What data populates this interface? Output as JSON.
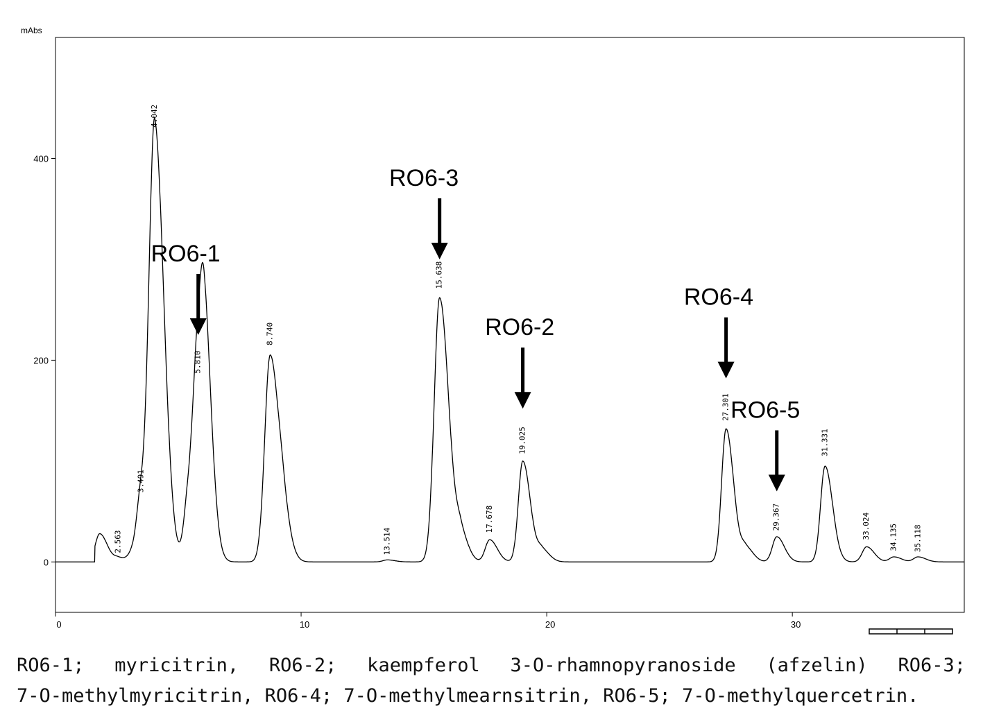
{
  "chart_data": {
    "type": "line",
    "ylabel": "mAbs",
    "xlim": [
      0,
      37
    ],
    "ylim": [
      -50,
      520
    ],
    "x_ticks": [
      0,
      10,
      20,
      30
    ],
    "y_ticks": [
      0,
      200,
      400
    ],
    "series": [
      {
        "peaks": [
          {
            "rt": 1.8,
            "height": 28
          },
          {
            "rt": 2.563,
            "height": 4
          },
          {
            "rt": 3.15,
            "height": 9
          },
          {
            "rt": 3.491,
            "height": 62
          },
          {
            "rt": 3.8,
            "height": 10
          },
          {
            "rt": 4.042,
            "height": 420
          },
          {
            "rt": 5.4,
            "height": 55
          },
          {
            "rt": 5.81,
            "height": 175
          },
          {
            "rt": 6.05,
            "height": 140
          },
          {
            "rt": 8.74,
            "height": 205
          },
          {
            "rt": 9.3,
            "height": 22
          },
          {
            "rt": 13.514,
            "height": 2
          },
          {
            "rt": 15.638,
            "height": 262
          },
          {
            "rt": 16.5,
            "height": 25
          },
          {
            "rt": 17.678,
            "height": 22
          },
          {
            "rt": 19.025,
            "height": 100
          },
          {
            "rt": 19.8,
            "height": 12
          },
          {
            "rt": 27.301,
            "height": 132
          },
          {
            "rt": 28.1,
            "height": 14
          },
          {
            "rt": 29.367,
            "height": 25
          },
          {
            "rt": 31.331,
            "height": 95
          },
          {
            "rt": 33.024,
            "height": 15
          },
          {
            "rt": 34.135,
            "height": 5
          },
          {
            "rt": 35.118,
            "height": 5
          }
        ]
      }
    ],
    "peak_labels": [
      {
        "x": 2.563,
        "y": 6,
        "text": "2.563"
      },
      {
        "x": 3.491,
        "y": 66,
        "text": "3.491"
      },
      {
        "x": 4.042,
        "y": 428,
        "text": "4.042"
      },
      {
        "x": 5.81,
        "y": 184,
        "text": "5.810"
      },
      {
        "x": 8.74,
        "y": 212,
        "text": "8.740"
      },
      {
        "x": 13.514,
        "y": 4,
        "text": "13.514"
      },
      {
        "x": 15.638,
        "y": 268,
        "text": "15.638"
      },
      {
        "x": 17.678,
        "y": 26,
        "text": "17.678"
      },
      {
        "x": 19.025,
        "y": 104,
        "text": "19.025"
      },
      {
        "x": 27.301,
        "y": 137,
        "text": "27.301"
      },
      {
        "x": 29.367,
        "y": 28,
        "text": "29.367"
      },
      {
        "x": 31.331,
        "y": 102,
        "text": "31.331"
      },
      {
        "x": 33.024,
        "y": 19,
        "text": "33.024"
      },
      {
        "x": 34.135,
        "y": 8,
        "text": "34.135"
      },
      {
        "x": 35.118,
        "y": 7,
        "text": "35.118"
      }
    ],
    "annotations": [
      {
        "text": "RO6-1",
        "target_x": 5.81,
        "target_y": 225,
        "label_x": 5.3
      },
      {
        "text": "RO6-3",
        "target_x": 15.638,
        "target_y": 300,
        "label_x": 15.0
      },
      {
        "text": "RO6-2",
        "target_x": 19.025,
        "target_y": 152,
        "label_x": 18.9
      },
      {
        "text": "RO6-4",
        "target_x": 27.301,
        "target_y": 182,
        "label_x": 27.0
      },
      {
        "text": "RO6-5",
        "target_x": 29.367,
        "target_y": 70,
        "label_x": 28.9
      }
    ]
  },
  "caption": {
    "line1": "RO6-1; myricitrin, RO6-2; kaempferol 3-O-rhamnopyranoside (afzelin) RO6-3;",
    "line2": "7-O-methylmyricitrin, RO6-4; 7-O-methylmearnsitrin, RO6-5; 7-O-methylquercetrin."
  }
}
